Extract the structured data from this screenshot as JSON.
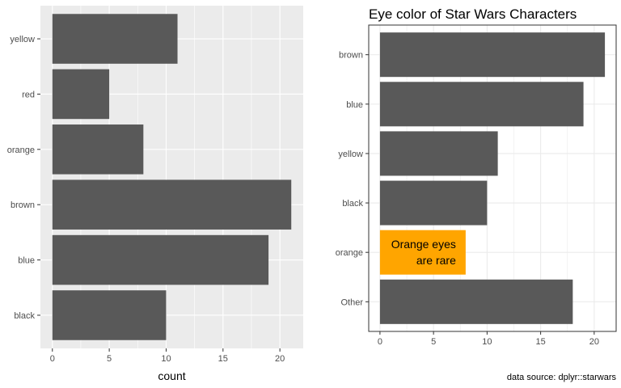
{
  "chart_data": [
    {
      "type": "bar",
      "orientation": "horizontal",
      "title": "",
      "xlabel": "count",
      "ylabel": "",
      "categories": [
        "black",
        "blue",
        "brown",
        "orange",
        "red",
        "yellow"
      ],
      "values": [
        10,
        19,
        21,
        8,
        5,
        11
      ],
      "xticks": [
        0,
        5,
        10,
        15,
        20
      ],
      "xlim": [
        -1.05,
        22.05
      ],
      "grid": true,
      "theme": "gray",
      "colors": {
        "panel": "#ebebeb",
        "grid": "#ffffff",
        "bar": "#595959"
      }
    },
    {
      "type": "bar",
      "orientation": "horizontal",
      "title": "Eye color of Star Wars Characters",
      "xlabel": "",
      "ylabel": "",
      "categories": [
        "Other",
        "orange",
        "black",
        "yellow",
        "blue",
        "brown"
      ],
      "values": [
        18,
        8,
        10,
        11,
        19,
        21
      ],
      "xticks": [
        0,
        5,
        10,
        15,
        20
      ],
      "xlim": [
        -1.05,
        22.05
      ],
      "grid": true,
      "theme": "bw",
      "highlight": {
        "category": "orange",
        "color": "#FFA500"
      },
      "annotation": {
        "category": "orange",
        "lines": [
          "Orange eyes",
          "are rare"
        ]
      },
      "caption": "data source: dplyr::starwars",
      "colors": {
        "panel": "#ffffff",
        "grid": "#ebebeb",
        "bar": "#595959",
        "border": "#333333"
      }
    }
  ]
}
